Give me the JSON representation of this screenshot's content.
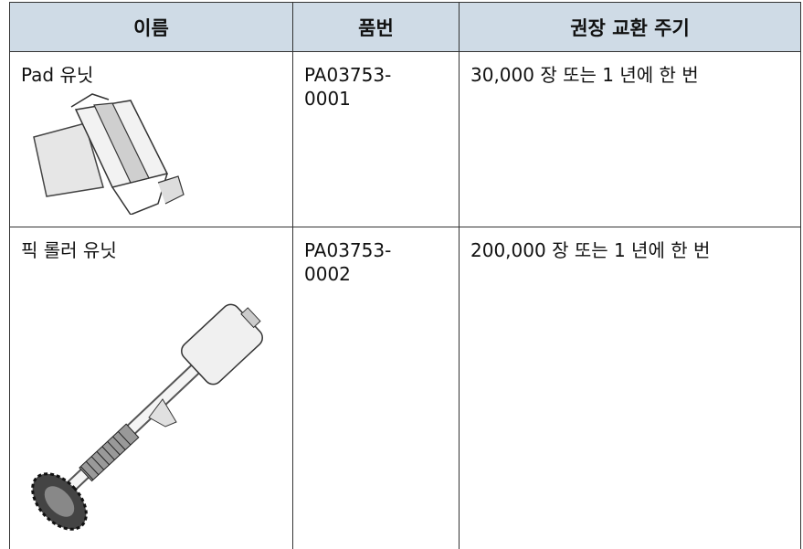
{
  "table": {
    "header": [
      "이름",
      "품번",
      "권장 교환 주기"
    ],
    "rows": [
      [
        "Pad 유닛",
        "PA03753-0001",
        "30,000 장 또는 1 년에 한 번"
      ],
      [
        "픽 롤러 유닛",
        "PA03753-0002",
        "200,000 장 또는 1 년에 한 번"
      ]
    ]
  }
}
